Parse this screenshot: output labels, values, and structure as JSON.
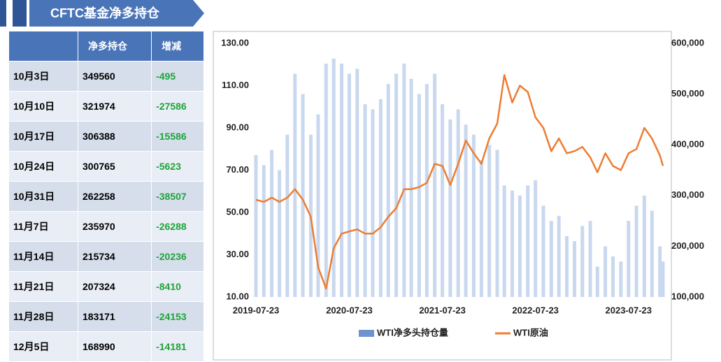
{
  "header": {
    "title": "CFTC基金净多持仓"
  },
  "table": {
    "columns": [
      "净多持仓",
      "增减"
    ],
    "rows": [
      [
        "10月3日",
        349560,
        -495
      ],
      [
        "10月10日",
        321974,
        -27586
      ],
      [
        "10月17日",
        306388,
        -15586
      ],
      [
        "10月24日",
        300765,
        -5623
      ],
      [
        "10月31日",
        262258,
        -38507
      ],
      [
        "11月7日",
        235970,
        -26288
      ],
      [
        "11月14日",
        215734,
        -20236
      ],
      [
        "11月21日",
        207324,
        -8410
      ],
      [
        "11月28日",
        183171,
        -24153
      ],
      [
        "12月5日",
        168990,
        -14181
      ]
    ]
  },
  "chart_data": {
    "type": "combo",
    "x": [
      "2019-07-23",
      "2019-08-23",
      "2019-09-23",
      "2019-10-23",
      "2019-11-23",
      "2019-12-23",
      "2020-01-23",
      "2020-02-23",
      "2020-03-23",
      "2020-04-23",
      "2020-05-23",
      "2020-06-23",
      "2020-07-23",
      "2020-08-23",
      "2020-09-23",
      "2020-10-23",
      "2020-11-23",
      "2020-12-23",
      "2021-01-23",
      "2021-02-23",
      "2021-03-23",
      "2021-04-23",
      "2021-05-23",
      "2021-06-23",
      "2021-07-23",
      "2021-08-23",
      "2021-09-23",
      "2021-10-23",
      "2021-11-23",
      "2021-12-23",
      "2022-01-23",
      "2022-02-23",
      "2022-03-23",
      "2022-04-23",
      "2022-05-23",
      "2022-06-23",
      "2022-07-23",
      "2022-08-23",
      "2022-09-23",
      "2022-10-23",
      "2022-11-23",
      "2022-12-23",
      "2023-01-23",
      "2023-02-23",
      "2023-03-23",
      "2023-04-23",
      "2023-05-23",
      "2023-06-23",
      "2023-07-23",
      "2023-08-23",
      "2023-09-23",
      "2023-10-23",
      "2023-11-23",
      "2023-12-05"
    ],
    "series": [
      {
        "name": "WTI净多头持仓量",
        "type": "bar",
        "axis": "y2",
        "color": "#c9d8ee",
        "values": [
          380000,
          360000,
          390000,
          350000,
          420000,
          540000,
          500000,
          420000,
          460000,
          560000,
          570000,
          560000,
          540000,
          550000,
          480000,
          470000,
          490000,
          520000,
          540000,
          560000,
          530000,
          500000,
          520000,
          540000,
          480000,
          450000,
          470000,
          440000,
          420000,
          370000,
          400000,
          390000,
          320000,
          310000,
          300000,
          320000,
          330000,
          280000,
          250000,
          260000,
          220000,
          210000,
          240000,
          250000,
          160000,
          200000,
          180000,
          170000,
          250000,
          280000,
          300000,
          270000,
          200000,
          170000
        ]
      },
      {
        "name": "WTI原油",
        "type": "line",
        "axis": "y",
        "color": "#ed7d31",
        "values": [
          56,
          55,
          57,
          55,
          57,
          61,
          56,
          48,
          24,
          14,
          33,
          40,
          41,
          42,
          40,
          40,
          43,
          48,
          52,
          61,
          61,
          62,
          64,
          73,
          72,
          63,
          73,
          84,
          78,
          73,
          85,
          92,
          115,
          102,
          110,
          107,
          95,
          90,
          79,
          85,
          78,
          79,
          81,
          76,
          69,
          78,
          72,
          70,
          78,
          80,
          90,
          85,
          77,
          72
        ]
      }
    ],
    "xlim": [
      "2019-07-23",
      "2023-12-05"
    ],
    "xticks": [
      "2019-07-23",
      "2020-07-23",
      "2021-07-23",
      "2022-07-23",
      "2023-07-23"
    ],
    "ylim": [
      10,
      130
    ],
    "yticks": [
      {
        "value": 10,
        "label": "10.00"
      },
      {
        "value": 30,
        "label": "30.00"
      },
      {
        "value": 50,
        "label": "50.00"
      },
      {
        "value": 70,
        "label": "70.00"
      },
      {
        "value": 90,
        "label": "90.00"
      },
      {
        "value": 110,
        "label": "110.00"
      },
      {
        "value": 130,
        "label": "130.00"
      }
    ],
    "y2lim": [
      100000,
      600000
    ],
    "y2ticks": [
      {
        "value": 100000,
        "label": "100,000"
      },
      {
        "value": 200000,
        "label": "200,000"
      },
      {
        "value": 300000,
        "label": "300,000"
      },
      {
        "value": 400000,
        "label": "400,000"
      },
      {
        "value": 500000,
        "label": "500,000"
      },
      {
        "value": 600000,
        "label": "600,000"
      }
    ],
    "legend": "bottom"
  }
}
